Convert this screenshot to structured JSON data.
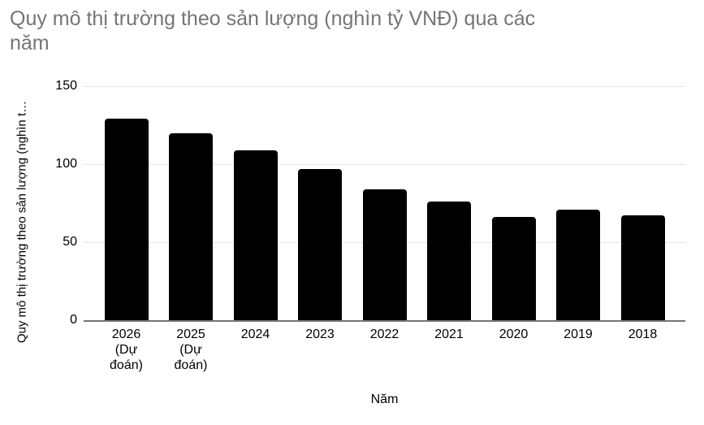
{
  "header": {
    "title": "Quy mô thị trường theo sản lượng (nghìn tỷ VNĐ) qua các năm",
    "title_display": "Quy mô thị trường theo sản lượng (nghìn tỷ VNĐ) qua các\nnăm"
  },
  "chart_data": {
    "type": "bar",
    "title": "Quy mô thị trường theo sản lượng (nghìn tỷ VNĐ) qua các năm",
    "xlabel": "Năm",
    "ylabel": "Quy mô thị trường theo sản lượng (nghìn t…",
    "categories": [
      "2026 (Dự đoán)",
      "2025 (Dự đoán)",
      "2024",
      "2023",
      "2022",
      "2021",
      "2020",
      "2019",
      "2018"
    ],
    "category_display": [
      "2026\n(Dự\nđoán)",
      "2025\n(Dự\nđoán)",
      "2024",
      "2023",
      "2022",
      "2021",
      "2020",
      "2019",
      "2018"
    ],
    "values": [
      129,
      120,
      109,
      97,
      84,
      76,
      66,
      71,
      67
    ],
    "ylim": [
      0,
      150
    ],
    "yticks": [
      0,
      50,
      100,
      150
    ],
    "grid": true,
    "legend_position": "none",
    "bar_color": "#000000",
    "colors": {
      "title": "#757575",
      "axis_text": "#000000",
      "gridline": "#e6e6e6",
      "baseline": "#757575",
      "background": "#ffffff"
    }
  }
}
